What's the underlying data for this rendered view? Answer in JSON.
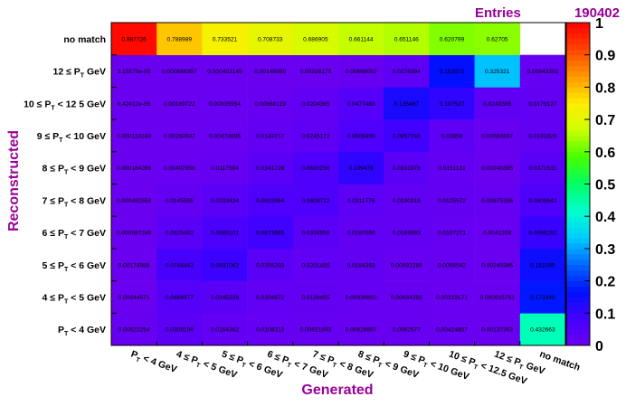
{
  "stats_box": {
    "label": "Entries",
    "value": "190402"
  },
  "chart_data": {
    "type": "heatmap",
    "title": "",
    "xlabel": "Generated",
    "ylabel": "Reconstructed",
    "x_categories": [
      "P_T < 4 GeV",
      "4 ≤ P_T < 5 GeV",
      "5 ≤ P_T < 6 GeV",
      "6 ≤ P_T < 7 GeV",
      "7 ≤ P_T < 8 GeV",
      "8 ≤ P_T < 9 GeV",
      "9 ≤ P_T < 10 GeV",
      "10 ≤ P_T < 12.5 GeV",
      "12 ≤ P_T GeV",
      "no match"
    ],
    "y_categories": [
      "P_T < 4 GeV",
      "4 ≤ P_T < 5 GeV",
      "5 ≤ P_T < 6 GeV",
      "6 ≤ P_T < 7 GeV",
      "7 ≤ P_T < 8 GeV",
      "8 ≤ P_T < 9 GeV",
      "9 ≤ P_T < 10 GeV",
      "10 ≤ P_T < 12 5 GeV",
      "12 ≤ P_T GeV",
      "no match"
    ],
    "x_tick_labels": [
      "P_T < 4 GeV",
      "4 ≤ P_T < 5 GeV",
      "5 ≤ P_T < 6 GeV",
      "6 ≤ P_T < 7 GeV",
      "7 ≤ P_T < 8 GeV",
      "8 ≤ P_T < 9 GeV",
      "9 ≤ P_T < 10 GeV",
      "10 ≤ P_T < 12.5 GeV",
      "12 ≤ P_T GeV",
      "no match"
    ],
    "values": [
      [
        0.00622254,
        0.0305199,
        0.0164382,
        0.0108313,
        0.00821693,
        0.00628897,
        0.0062577,
        0.00424857,
        0.00137363,
        0.432663
      ],
      [
        0.00244571,
        0.0484977,
        0.0345226,
        0.0204872,
        0.0126455,
        0.00936892,
        0.00634393,
        0.00319171,
        0.000915751,
        0.173349
      ],
      [
        0.00174988,
        0.0744443,
        0.0931062,
        0.0356283,
        0.0201455,
        0.0184393,
        0.00692289,
        0.0056542,
        0.00240385,
        0.151095
      ],
      [
        0.000987246,
        0.0325482,
        0.0686101,
        0.0873665,
        0.0338556,
        0.0187066,
        0.0169993,
        0.0107271,
        0.0041208,
        0.0996292
      ],
      [
        0.000482558,
        0.0145595,
        0.0333434,
        0.0603964,
        0.0609722,
        0.0311776,
        0.0190318,
        0.0125572,
        0.00875396,
        0.0606642
      ],
      [
        0.000184286,
        0.00497858,
        0.0117584,
        0.0341728,
        0.0620236,
        0.109478,
        0.0331978,
        0.0151131,
        0.00240385,
        0.0371511
      ],
      [
        0.000118243,
        0.00260507,
        0.00473695,
        0.0143717,
        0.0245172,
        0.0608496,
        0.0857748,
        0.02858,
        0.00560897,
        0.0191826
      ],
      [
        6.42412e-05,
        0.00189722,
        0.00335954,
        0.00668119,
        0.0204365,
        0.0477483,
        0.135487,
        0.107527,
        0.0240385,
        0.0179127
      ],
      [
        3.15575e-05,
        0.000688357,
        0.000403145,
        0.00148999,
        0.00228175,
        0.00668092,
        0.0278394,
        0.163572,
        0.325321,
        0.00843302
      ],
      [
        0.987726,
        0.788989,
        0.733521,
        0.708733,
        0.686905,
        0.661144,
        0.651146,
        0.620799,
        0.62705,
        null
      ]
    ],
    "cell_labels": [
      [
        "0.00622254",
        "0.0305199",
        "0.0164382",
        "0.0108313",
        "0.00821693",
        "0.00628897",
        "0.0062577",
        "0.00424857",
        "0.00137363",
        "0.432663"
      ],
      [
        "0.00244571",
        "0.0484977",
        "0.0345226",
        "0.0204872",
        "0.0126455",
        "0.00936892",
        "0.00634393",
        "0.00319171",
        "0.000915751",
        "0.173349"
      ],
      [
        "0.00174988",
        "0.0744443",
        "0.0931062",
        "0.0356283",
        "0.0201455",
        "0.0184393",
        "0.00692289",
        "0.0056542",
        "0.00240385",
        "0.151095"
      ],
      [
        "0.000987246",
        "0.0325482",
        "0.0686101",
        "0.0873665",
        "0.0338556",
        "0.0187066",
        "0.0169993",
        "0.0107271",
        "0.0041208",
        "0.0996292"
      ],
      [
        "0.000482558",
        "0.0145595",
        "0.0333434",
        "0.0603964",
        "0.0609722",
        "0.0311776",
        "0.0190318",
        "0.0125572",
        "0.00875396",
        "0.0606642"
      ],
      [
        "0.000184286",
        "0.00497858",
        "0.0117584",
        "0.0341728",
        "0.0620236",
        "0.109478",
        "0.0331978",
        "0.0151131",
        "0.00240385",
        "0.0371511"
      ],
      [
        "0.000118243",
        "0.00260507",
        "0.00473695",
        "0.0143717",
        "0.0245172",
        "0.0608496",
        "0.0857748",
        "0.02858",
        "0.00560897",
        "0.0191826"
      ],
      [
        "6.42412e-05",
        "0.00189722",
        "0.00335954",
        "0.00668119",
        "0.0204365",
        "0.0477483",
        "0.135487",
        "0.107527",
        "0.0240385",
        "0.0179127"
      ],
      [
        "3.15575e-05",
        "0.000688357",
        "0.000403145",
        "0.00148999",
        "0.00228175",
        "0.00668092",
        "0.0278394",
        "0.163572",
        "0.325321",
        "0.00843302"
      ],
      [
        "0.987726",
        "0.788989",
        "0.733521",
        "0.708733",
        "0.686905",
        "0.661144",
        "0.651146",
        "0.620799",
        "0.62705",
        ""
      ]
    ],
    "zlim": [
      0,
      1
    ],
    "colorbar_ticks": [
      "0",
      "0.1",
      "0.2",
      "0.3",
      "0.4",
      "0.5",
      "0.6",
      "0.7",
      "0.8",
      "0.9",
      "1"
    ],
    "empty_cell_color": "#ffffff",
    "colors": {
      "axis_title": "#990099",
      "stats_text": "#990099",
      "palette": [
        "#6a00f0",
        "#4400ff",
        "#0010ff",
        "#0066ff",
        "#00ccff",
        "#00ffcc",
        "#00ff66",
        "#44ff00",
        "#ccff00",
        "#ffee00",
        "#ff9900",
        "#ff4400",
        "#ff0000"
      ]
    }
  }
}
